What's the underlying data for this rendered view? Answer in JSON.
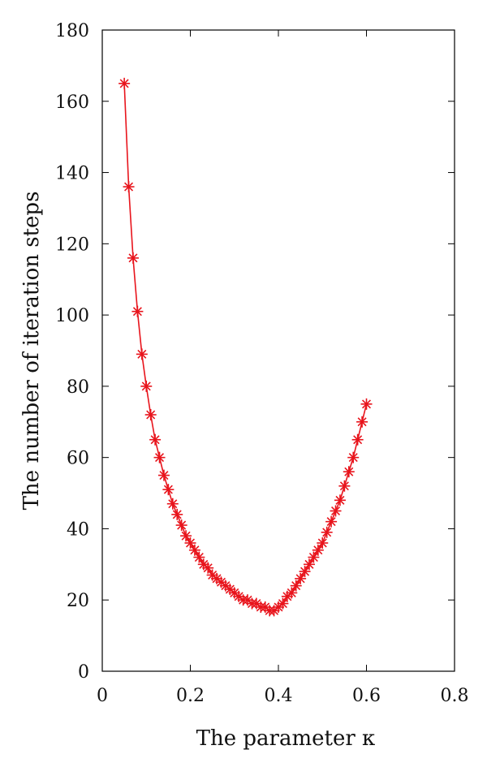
{
  "chart_data": {
    "type": "line",
    "xlabel": "The parameter κ",
    "ylabel": "The number of iteration steps",
    "xlim": [
      0,
      0.8
    ],
    "ylim": [
      0,
      180
    ],
    "xticks": [
      "0",
      "0.2",
      "0.4",
      "0.6",
      "0.8"
    ],
    "yticks": [
      "0",
      "20",
      "40",
      "60",
      "80",
      "100",
      "120",
      "140",
      "160",
      "180"
    ],
    "grid": false,
    "series": [
      {
        "color": "#e8141c",
        "marker": "asterisk",
        "x": [
          0.05,
          0.06,
          0.07,
          0.08,
          0.09,
          0.1,
          0.11,
          0.12,
          0.13,
          0.14,
          0.15,
          0.16,
          0.17,
          0.18,
          0.19,
          0.2,
          0.21,
          0.22,
          0.23,
          0.24,
          0.25,
          0.26,
          0.27,
          0.28,
          0.29,
          0.3,
          0.31,
          0.32,
          0.33,
          0.34,
          0.35,
          0.36,
          0.37,
          0.38,
          0.39,
          0.4,
          0.41,
          0.42,
          0.43,
          0.44,
          0.45,
          0.46,
          0.47,
          0.48,
          0.49,
          0.5,
          0.51,
          0.52,
          0.53,
          0.54,
          0.55,
          0.56,
          0.57,
          0.58,
          0.59,
          0.6
        ],
        "values": [
          165,
          136,
          116,
          101,
          89,
          80,
          72,
          65,
          60,
          55,
          51,
          47,
          44,
          41,
          38,
          36,
          34,
          32,
          30,
          29,
          27,
          26,
          25,
          24,
          23,
          22,
          21,
          20,
          20,
          19,
          19,
          18,
          18,
          17,
          17,
          18,
          19,
          21,
          22,
          24,
          26,
          28,
          30,
          32,
          34,
          36,
          39,
          42,
          45,
          48,
          52,
          56,
          60,
          65,
          70,
          75
        ]
      }
    ]
  }
}
